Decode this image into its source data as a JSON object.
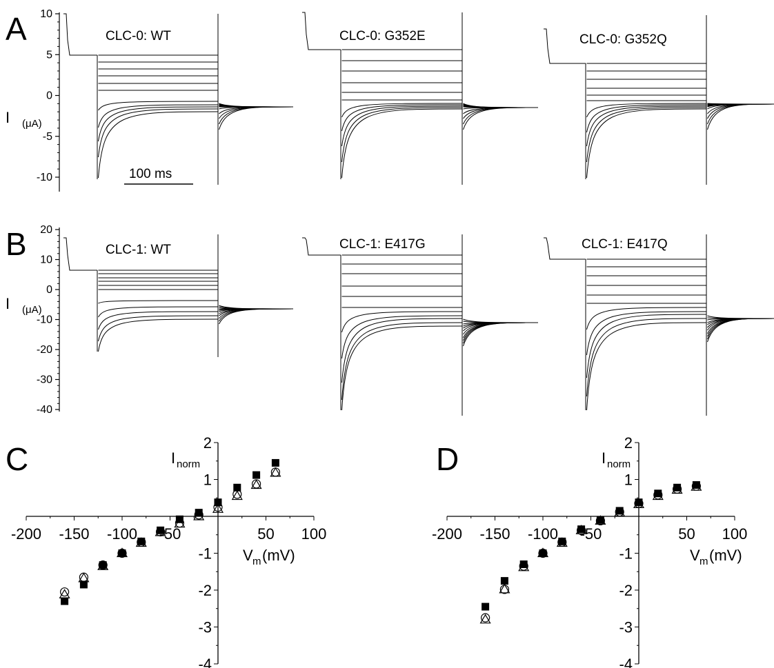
{
  "panels": {
    "A": {
      "letter": "A",
      "y_axis_label": "I",
      "y_axis_unit": "(μA)",
      "ylim": [
        -12,
        10
      ],
      "yticks": [
        "10",
        "5",
        "0",
        "-5",
        "-10"
      ],
      "scale_bar": "100 ms",
      "traces": [
        {
          "label": "CLC-0: WT"
        },
        {
          "label": "CLC-0: G352E"
        },
        {
          "label": "CLC-0: G352Q"
        }
      ]
    },
    "B": {
      "letter": "B",
      "y_axis_label": "I",
      "y_axis_unit": "(μA)",
      "ylim": [
        -40,
        20
      ],
      "yticks": [
        "20",
        "10",
        "0",
        "-10",
        "-20",
        "-30",
        "-40"
      ],
      "traces": [
        {
          "label": "CLC-1: WT"
        },
        {
          "label": "CLC-1: E417G"
        },
        {
          "label": "CLC-1: E417Q"
        }
      ]
    }
  },
  "chart_data": [
    {
      "panel": "C",
      "letter": "C",
      "type": "scatter",
      "ylabel_main": "I",
      "ylabel_sub": "norm",
      "xlabel_main": "V",
      "xlabel_sub": "m",
      "xlabel_unit": "(mV)",
      "xlim": [
        -200,
        100
      ],
      "ylim": [
        -4,
        2
      ],
      "xticks": [
        -200,
        -150,
        -100,
        -50,
        50,
        100
      ],
      "yticks": [
        2,
        1,
        -1,
        -2,
        -3,
        -4
      ],
      "x": [
        -160,
        -140,
        -120,
        -100,
        -80,
        -60,
        -40,
        -20,
        0,
        20,
        40,
        60
      ],
      "series": [
        {
          "marker": "filled-square",
          "values": [
            -2.3,
            -1.85,
            -1.32,
            -1.0,
            -0.68,
            -0.38,
            -0.08,
            0.1,
            0.38,
            0.78,
            1.12,
            1.45
          ]
        },
        {
          "marker": "open-circle",
          "values": [
            -2.05,
            -1.65,
            -1.32,
            -1.0,
            -0.7,
            -0.42,
            -0.18,
            0.04,
            0.25,
            0.6,
            0.88,
            1.2
          ]
        },
        {
          "marker": "open-triangle",
          "values": [
            -2.12,
            -1.68,
            -1.35,
            -1.0,
            -0.72,
            -0.43,
            -0.2,
            0.0,
            0.2,
            0.55,
            0.85,
            1.18
          ]
        }
      ]
    },
    {
      "panel": "D",
      "letter": "D",
      "type": "scatter",
      "ylabel_main": "I",
      "ylabel_sub": "norm",
      "xlabel_main": "V",
      "xlabel_sub": "m",
      "xlabel_unit": "(mV)",
      "xlim": [
        -200,
        100
      ],
      "ylim": [
        -4,
        2
      ],
      "xticks": [
        -200,
        -150,
        -100,
        -50,
        50,
        100
      ],
      "yticks": [
        2,
        1,
        -1,
        -2,
        -3,
        -4
      ],
      "x": [
        -160,
        -140,
        -120,
        -100,
        -80,
        -60,
        -40,
        -20,
        0,
        20,
        40,
        60
      ],
      "series": [
        {
          "marker": "filled-square",
          "values": [
            -2.45,
            -1.75,
            -1.3,
            -1.0,
            -0.68,
            -0.35,
            -0.1,
            0.15,
            0.38,
            0.62,
            0.78,
            0.85
          ]
        },
        {
          "marker": "open-circle",
          "values": [
            -2.75,
            -1.98,
            -1.35,
            -1.0,
            -0.7,
            -0.38,
            -0.12,
            0.12,
            0.35,
            0.58,
            0.74,
            0.82
          ]
        },
        {
          "marker": "open-triangle",
          "values": [
            -2.8,
            -1.98,
            -1.38,
            -1.0,
            -0.72,
            -0.38,
            -0.12,
            0.1,
            0.33,
            0.55,
            0.72,
            0.8
          ]
        }
      ]
    }
  ]
}
